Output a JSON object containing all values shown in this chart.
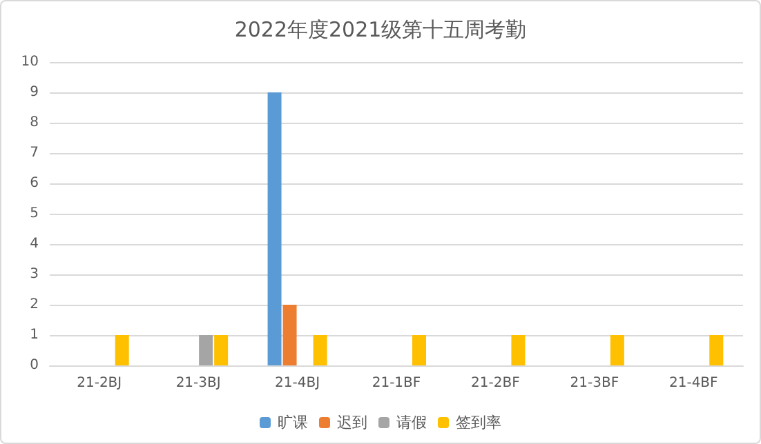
{
  "chart_data": {
    "type": "bar",
    "title": "2022年度2021级第十五周考勤",
    "categories": [
      "21-2BJ",
      "21-3BJ",
      "21-4BJ",
      "21-1BF",
      "21-2BF",
      "21-3BF",
      "21-4BF"
    ],
    "series": [
      {
        "name": "旷课",
        "color": "#5b9bd5",
        "values": [
          0,
          0,
          9,
          0,
          0,
          0,
          0
        ]
      },
      {
        "name": "迟到",
        "color": "#ed7d31",
        "values": [
          0,
          0,
          2,
          0,
          0,
          0,
          0
        ]
      },
      {
        "name": "请假",
        "color": "#a5a5a5",
        "values": [
          0,
          1,
          0,
          0,
          0,
          0,
          0
        ]
      },
      {
        "name": "签到率",
        "color": "#ffc000",
        "values": [
          1,
          1,
          1,
          1,
          1,
          1,
          1
        ]
      }
    ],
    "ylim": [
      0,
      10
    ],
    "yticks": [
      0,
      1,
      2,
      3,
      4,
      5,
      6,
      7,
      8,
      9,
      10
    ],
    "grid": "y",
    "legend": "bottom"
  }
}
